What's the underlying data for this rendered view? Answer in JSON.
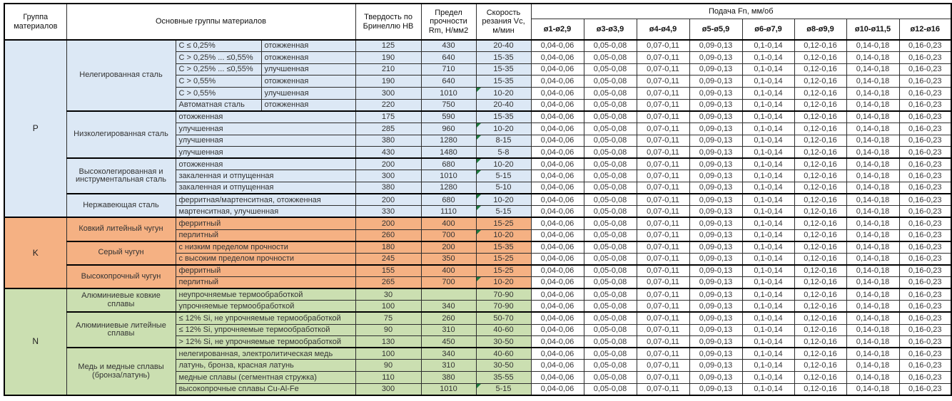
{
  "header": {
    "title_group": "Группа материалов",
    "title_materials": "Основные группы материалов",
    "title_hardness": "Твердость по Бринеллю HB",
    "title_strength": "Предел прочности Rm, Н/мм2",
    "title_speed": "Скорость резания Vc, м/мин",
    "title_feed": "Подача Fn, мм/об",
    "feed_cols": [
      "ø1-ø2,9",
      "ø3-ø3,9",
      "ø4-ø4,9",
      "ø5-ø5,9",
      "ø6-ø7,9",
      "ø8-ø9,9",
      "ø10-ø11,5",
      "ø12-ø16"
    ]
  },
  "feed_values": [
    "0,04-0,06",
    "0,05-0,08",
    "0,07-0,11",
    "0,09-0,13",
    "0,1-0,14",
    "0,12-0,16",
    "0,14-0,18",
    "0,16-0,23"
  ],
  "colors": {
    "group_p": "#dce8f5",
    "group_k": "#f5b183",
    "group_n": "#cbdfb1",
    "marker": "#1d7a3e"
  },
  "groups": [
    {
      "code": "P",
      "color": "#dce8f5",
      "families": [
        {
          "name": "Нелегированная сталь",
          "rows": [
            {
              "c1": "C ≤ 0,25%",
              "c2": "отожженная",
              "hb": "125",
              "rm": "430",
              "vc": "20-40",
              "note": false
            },
            {
              "c1": "C > 0,25% ... ≤0,55%",
              "c2": "отожженная",
              "hb": "190",
              "rm": "640",
              "vc": "15-35",
              "note": false
            },
            {
              "c1": "C > 0,25% ... ≤0,55%",
              "c2": "улучшенная",
              "hb": "210",
              "rm": "710",
              "vc": "15-35",
              "note": false
            },
            {
              "c1": "C > 0,55%",
              "c2": "отожженная",
              "hb": "190",
              "rm": "640",
              "vc": "15-35",
              "note": false
            },
            {
              "c1": "C > 0,55%",
              "c2": "улучшенная",
              "hb": "300",
              "rm": "1010",
              "vc": "10-20",
              "note": true
            },
            {
              "c1": "Автоматная сталь",
              "c2": "отожженная",
              "hb": "220",
              "rm": "750",
              "vc": "20-40",
              "note": false
            }
          ]
        },
        {
          "name": "Низколегированная сталь",
          "rows": [
            {
              "c1": "отожженная",
              "hb": "175",
              "rm": "590",
              "vc": "15-35",
              "note": false
            },
            {
              "c1": "улучшенная",
              "hb": "285",
              "rm": "960",
              "vc": "10-20",
              "note": true
            },
            {
              "c1": "улучшенная",
              "hb": "380",
              "rm": "1280",
              "vc": "8-15",
              "note": true
            },
            {
              "c1": "улучшенная",
              "hb": "430",
              "rm": "1480",
              "vc": "5-8",
              "note": false
            }
          ]
        },
        {
          "name": "Высоколегированная и инструментальная сталь",
          "rows": [
            {
              "c1": "отожженная",
              "hb": "200",
              "rm": "680",
              "vc": "10-20",
              "note": true
            },
            {
              "c1": "закаленная и отпущенная",
              "hb": "300",
              "rm": "1010",
              "vc": "5-15",
              "note": true
            },
            {
              "c1": "закаленная и отпущенная",
              "hb": "380",
              "rm": "1280",
              "vc": "5-10",
              "note": false
            }
          ]
        },
        {
          "name": "Нержавеющая сталь",
          "rows": [
            {
              "c1": "ферритная/мартенситная, отожженная",
              "hb": "200",
              "rm": "680",
              "vc": "10-20",
              "note": true
            },
            {
              "c1": "мартенситная, улучшенная",
              "hb": "330",
              "rm": "1110",
              "vc": "5-15",
              "note": true
            }
          ]
        }
      ]
    },
    {
      "code": "K",
      "color": "#f5b183",
      "families": [
        {
          "name": "Ковкий литейный чугун",
          "rows": [
            {
              "c1": "ферритный",
              "hb": "200",
              "rm": "400",
              "vc": "15-25",
              "note": false
            },
            {
              "c1": "перлитный",
              "hb": "260",
              "rm": "700",
              "vc": "10-20",
              "note": true
            }
          ]
        },
        {
          "name": "Серый чугун",
          "rows": [
            {
              "c1": "с низким пределом прочности",
              "hb": "180",
              "rm": "200",
              "vc": "15-35",
              "note": false
            },
            {
              "c1": "с высоким пределом прочности",
              "hb": "245",
              "rm": "350",
              "vc": "15-25",
              "note": false
            }
          ]
        },
        {
          "name": "Высокопрочный чугун",
          "rows": [
            {
              "c1": "ферритный",
              "hb": "155",
              "rm": "400",
              "vc": "15-25",
              "note": false
            },
            {
              "c1": "перлитный",
              "hb": "265",
              "rm": "700",
              "vc": "10-20",
              "note": true
            }
          ]
        }
      ]
    },
    {
      "code": "N",
      "color": "#cbdfb1",
      "families": [
        {
          "name": "Алюминиевые ковкие сплавы",
          "rows": [
            {
              "c1": "неупрочняемые термообработкой",
              "hb": "30",
              "rm": "",
              "vc": "70-90",
              "note": false
            },
            {
              "c1": "упрочняемые термообработкой",
              "hb": "100",
              "rm": "340",
              "vc": "70-90",
              "note": false
            }
          ]
        },
        {
          "name": "Алюминиевые литейные сплавы",
          "rows": [
            {
              "c1": "≤ 12% Si, не упрочняемые термообработкой",
              "hb": "75",
              "rm": "260",
              "vc": "50-70",
              "note": false
            },
            {
              "c1": "≤ 12% Si, упрочняемые термообработкой",
              "hb": "90",
              "rm": "310",
              "vc": "40-60",
              "note": false
            },
            {
              "c1": "> 12% Si, не упрочняемые термообработкой",
              "hb": "130",
              "rm": "450",
              "vc": "30-50",
              "note": false
            }
          ]
        },
        {
          "name": "Медь и медные сплавы (бронза/латунь)",
          "rows": [
            {
              "c1": "нелегированная, электролитическая медь",
              "hb": "100",
              "rm": "340",
              "vc": "40-60",
              "note": false
            },
            {
              "c1": "латунь, бронза, красная латунь",
              "hb": "90",
              "rm": "310",
              "vc": "30-50",
              "note": false
            },
            {
              "c1": "медные сплавы (сегментная стружка)",
              "hb": "110",
              "rm": "380",
              "vc": "35-55",
              "note": false
            },
            {
              "c1": "высокопрочные сплавы Cu-Al-Fe",
              "hb": "300",
              "rm": "1010",
              "vc": "5-15",
              "note": true
            }
          ]
        }
      ]
    }
  ]
}
